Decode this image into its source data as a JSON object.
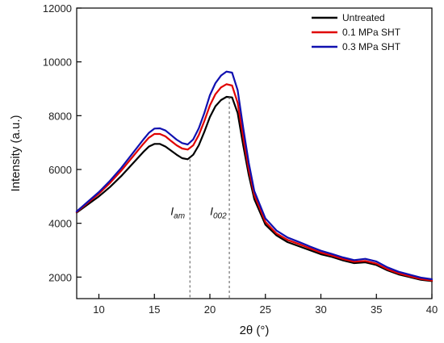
{
  "chart_data": {
    "type": "line",
    "xlabel": "2θ (°)",
    "ylabel": "Intensity (a.u.)",
    "xlim": [
      8,
      40
    ],
    "ylim": [
      1200,
      12000
    ],
    "x_ticks": [
      10,
      15,
      20,
      25,
      30,
      35,
      40
    ],
    "y_ticks": [
      2000,
      4000,
      6000,
      8000,
      10000,
      12000
    ],
    "legend_position": "top-right",
    "x": [
      8,
      9,
      10,
      11,
      12,
      13,
      14,
      14.5,
      15,
      15.5,
      16,
      16.5,
      17,
      17.5,
      18,
      18.5,
      19,
      19.5,
      20,
      20.5,
      21,
      21.5,
      22,
      22.5,
      23,
      23.5,
      24,
      25,
      26,
      27,
      28,
      29,
      30,
      31,
      32,
      33,
      34,
      35,
      36,
      37,
      38,
      39,
      40
    ],
    "series": [
      {
        "name": "Untreated",
        "color": "#000000",
        "values": [
          4400,
          4700,
          5000,
          5350,
          5750,
          6200,
          6650,
          6850,
          6950,
          6950,
          6850,
          6700,
          6550,
          6420,
          6380,
          6550,
          6900,
          7400,
          7950,
          8350,
          8580,
          8700,
          8680,
          8100,
          6900,
          5800,
          4900,
          3950,
          3550,
          3300,
          3150,
          3000,
          2850,
          2750,
          2620,
          2520,
          2550,
          2450,
          2250,
          2100,
          2000,
          1900,
          1850
        ]
      },
      {
        "name": "0.1 MPa SHT",
        "color": "#e00000",
        "values": [
          4420,
          4760,
          5100,
          5500,
          5950,
          6450,
          6950,
          7180,
          7320,
          7320,
          7230,
          7060,
          6900,
          6780,
          6740,
          6900,
          7280,
          7800,
          8380,
          8800,
          9050,
          9170,
          9120,
          8480,
          7200,
          6000,
          5050,
          4050,
          3620,
          3380,
          3230,
          3070,
          2910,
          2800,
          2670,
          2570,
          2600,
          2500,
          2290,
          2140,
          2030,
          1930,
          1870
        ]
      },
      {
        "name": "0.3 MPa SHT",
        "color": "#1010b0",
        "values": [
          4440,
          4800,
          5160,
          5580,
          6050,
          6580,
          7110,
          7360,
          7520,
          7530,
          7450,
          7280,
          7110,
          6980,
          6930,
          7120,
          7530,
          8100,
          8760,
          9210,
          9490,
          9640,
          9600,
          8950,
          7550,
          6250,
          5200,
          4180,
          3730,
          3470,
          3310,
          3140,
          2980,
          2860,
          2730,
          2630,
          2680,
          2580,
          2360,
          2200,
          2090,
          1980,
          1920
        ]
      }
    ],
    "annotations": [
      {
        "label": "I",
        "sub": "am",
        "x": 18.2,
        "label_y": 4300
      },
      {
        "label": "I",
        "sub": "002",
        "x": 21.75,
        "label_y": 4300
      }
    ]
  }
}
